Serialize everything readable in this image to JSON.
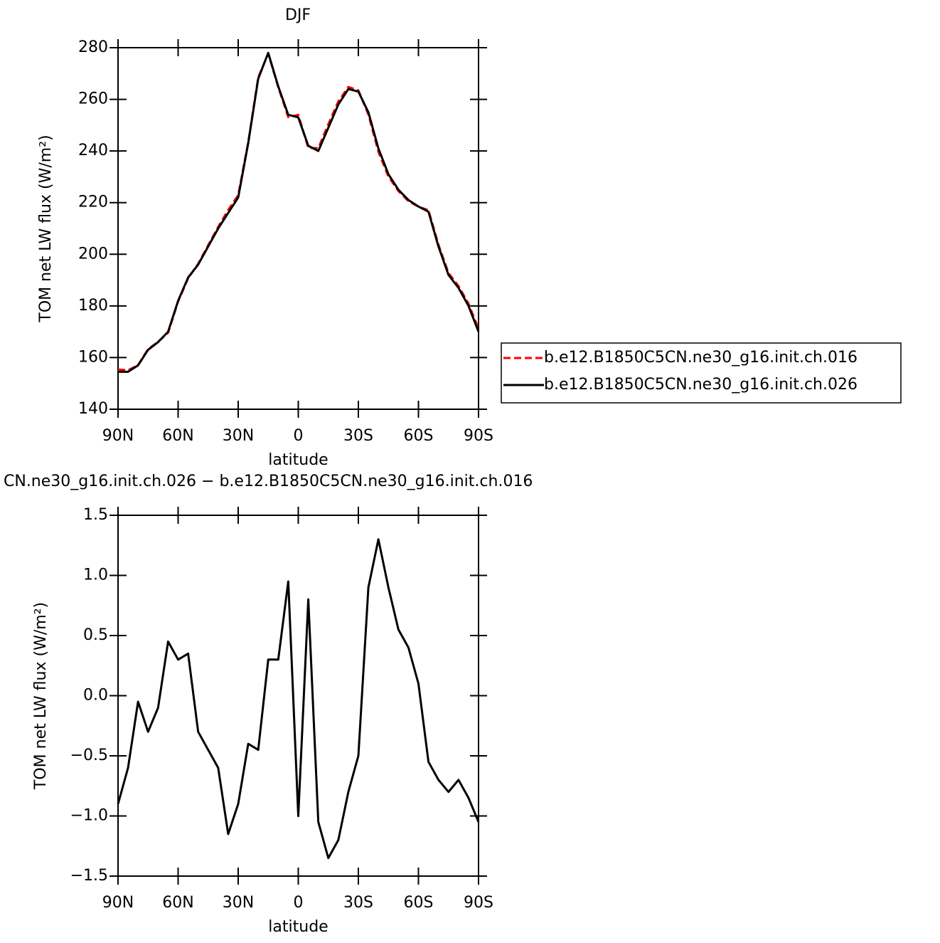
{
  "chart_data": [
    {
      "type": "line",
      "title": "DJF",
      "x_label": "latitude",
      "y_label": "TOM net LW flux (W/m²)",
      "x": [
        90,
        85,
        80,
        75,
        70,
        65,
        60,
        55,
        50,
        45,
        40,
        35,
        30,
        25,
        20,
        15,
        10,
        5,
        0,
        -5,
        -10,
        -15,
        -20,
        -25,
        -30,
        -35,
        -40,
        -45,
        -50,
        -55,
        -60,
        -65,
        -70,
        -75,
        -80,
        -85,
        -90
      ],
      "series": [
        {
          "name": "b.e12.B1850C5CN.ne30_g16.init.ch.016",
          "color": "#ff0000",
          "line_style": "dashed",
          "values": [
            155.4,
            155.1,
            157.1,
            163.3,
            166.1,
            169.6,
            181.7,
            190.7,
            196.3,
            203.5,
            210.6,
            217.2,
            222.9,
            243.4,
            268.5,
            277.7,
            264.7,
            253.1,
            254,
            241.2,
            241.1,
            250.4,
            259.2,
            264.8,
            263.5,
            254.1,
            239.7,
            230.1,
            224.5,
            220.6,
            218.4,
            217.1,
            203.7,
            192.8,
            187.7,
            180.9,
            171.1
          ]
        },
        {
          "name": "b.e12.B1850C5CN.ne30_g16.init.ch.026",
          "color": "#000000",
          "line_style": "solid",
          "values": [
            154.5,
            154.5,
            157,
            163,
            166,
            170,
            182,
            191,
            196,
            203,
            210,
            216,
            222,
            243,
            268,
            278,
            265,
            254,
            253,
            242,
            240,
            249,
            258,
            264,
            263,
            255,
            241,
            231,
            225,
            221,
            218.5,
            216.5,
            203,
            192,
            187,
            180,
            170
          ]
        }
      ],
      "xlim": [
        90,
        -90
      ],
      "xticks": [
        {
          "value": 90,
          "label": "90N"
        },
        {
          "value": 60,
          "label": "60N"
        },
        {
          "value": 30,
          "label": "30N"
        },
        0,
        {
          "value": -30,
          "label": "30S"
        },
        {
          "value": -60,
          "label": "60S"
        },
        {
          "value": -90,
          "label": "90S"
        }
      ],
      "ylim": [
        140,
        280
      ],
      "yticks": [
        140,
        160,
        180,
        200,
        220,
        240,
        260,
        280
      ],
      "legend": "right"
    },
    {
      "type": "line",
      "title": "CN.ne30_g16.init.ch.026 − b.e12.B1850C5CN.ne30_g16.init.ch.016",
      "x_label": "latitude",
      "y_label": "TOM net LW flux (W/m²)",
      "x": [
        90,
        85,
        80,
        75,
        70,
        65,
        60,
        55,
        50,
        45,
        40,
        35,
        30,
        25,
        20,
        15,
        10,
        5,
        0,
        -5,
        -10,
        -15,
        -20,
        -25,
        -30,
        -35,
        -40,
        -45,
        -50,
        -55,
        -60,
        -65,
        -70,
        -75,
        -80,
        -85,
        -90
      ],
      "series": [
        {
          "color": "#000000",
          "line_style": "solid",
          "values": [
            -0.9,
            -0.6,
            -0.05,
            -0.3,
            -0.1,
            0.45,
            0.3,
            0.35,
            -0.3,
            -0.45,
            -0.6,
            -1.15,
            -0.9,
            -0.4,
            -0.45,
            0.3,
            0.3,
            0.95,
            -1.0,
            0.8,
            -1.05,
            -1.35,
            -1.2,
            -0.8,
            -0.5,
            0.9,
            1.3,
            0.9,
            0.55,
            0.4,
            0.1,
            -0.55,
            -0.7,
            -0.8,
            -0.7,
            -0.85,
            -1.05
          ]
        }
      ],
      "xlim": [
        90,
        -90
      ],
      "xticks": [
        {
          "value": 90,
          "label": "90N"
        },
        {
          "value": 60,
          "label": "60N"
        },
        {
          "value": 30,
          "label": "30N"
        },
        0,
        {
          "value": -30,
          "label": "30S"
        },
        {
          "value": -60,
          "label": "60S"
        },
        {
          "value": -90,
          "label": "90S"
        }
      ],
      "ylim": [
        -1.5,
        1.5
      ],
      "yticks": [
        {
          "value": -1.5,
          "label": "−1.5"
        },
        {
          "value": -1.0,
          "label": "−1.0"
        },
        {
          "value": -0.5,
          "label": "−0.5"
        },
        {
          "value": 0,
          "label": "0.0"
        },
        0.5,
        {
          "value": 1.0,
          "label": "1.0"
        },
        1.5
      ]
    }
  ]
}
